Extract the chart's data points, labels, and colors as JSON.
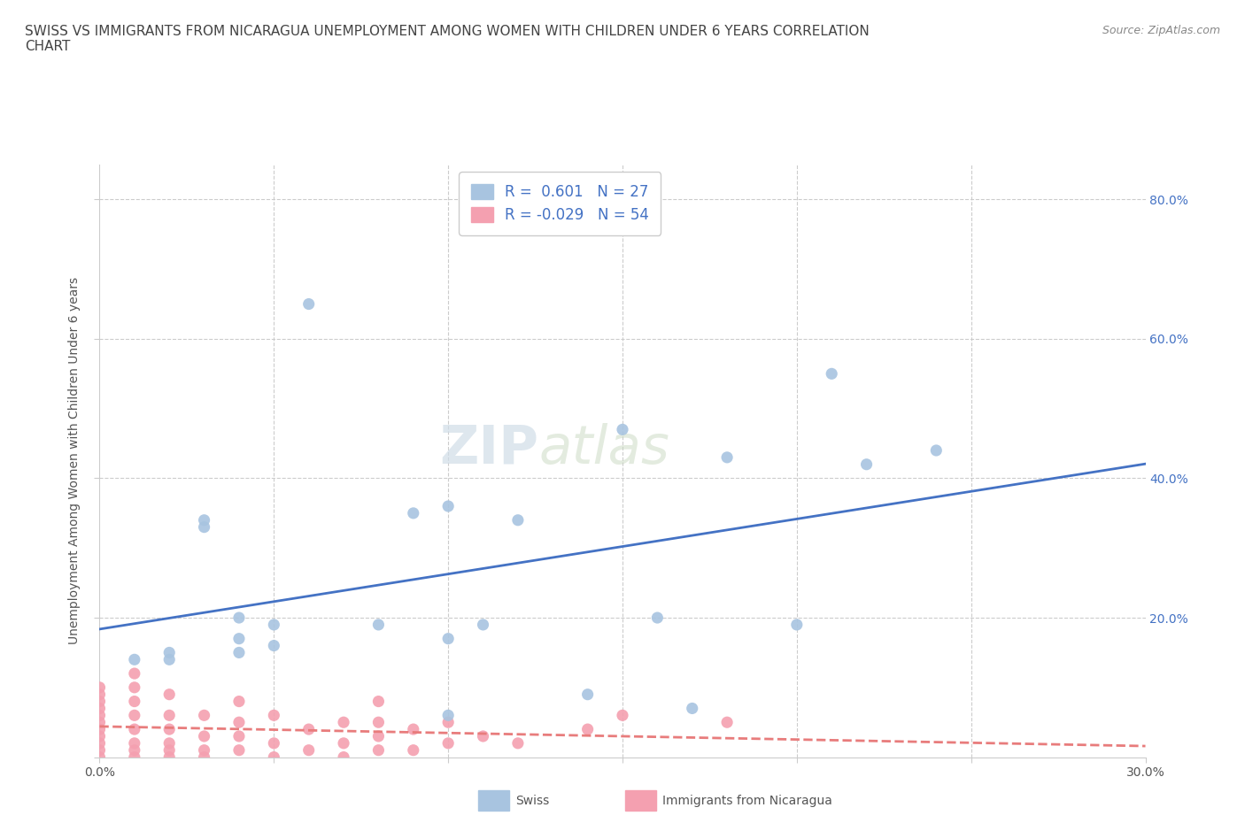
{
  "title": "SWISS VS IMMIGRANTS FROM NICARAGUA UNEMPLOYMENT AMONG WOMEN WITH CHILDREN UNDER 6 YEARS CORRELATION\nCHART",
  "source": "Source: ZipAtlas.com",
  "xlabel": "",
  "ylabel": "Unemployment Among Women with Children Under 6 years",
  "xlim": [
    0.0,
    0.3
  ],
  "ylim": [
    0.0,
    0.85
  ],
  "xticks": [
    0.0,
    0.05,
    0.1,
    0.15,
    0.2,
    0.25,
    0.3
  ],
  "yticks": [
    0.0,
    0.2,
    0.4,
    0.6,
    0.8
  ],
  "swiss_color": "#a8c4e0",
  "nicaragua_color": "#f4a0b0",
  "swiss_line_color": "#4472c4",
  "nicaragua_line_color": "#e87c7c",
  "swiss_R": 0.601,
  "swiss_N": 27,
  "nicaragua_R": -0.029,
  "nicaragua_N": 54,
  "watermark_text": "ZIP",
  "watermark_text2": "atlas",
  "swiss_x": [
    0.01,
    0.02,
    0.02,
    0.03,
    0.03,
    0.04,
    0.04,
    0.04,
    0.05,
    0.05,
    0.06,
    0.08,
    0.09,
    0.1,
    0.1,
    0.1,
    0.11,
    0.12,
    0.14,
    0.15,
    0.16,
    0.17,
    0.18,
    0.2,
    0.21,
    0.22,
    0.24
  ],
  "swiss_y": [
    0.14,
    0.14,
    0.15,
    0.33,
    0.34,
    0.15,
    0.17,
    0.2,
    0.16,
    0.19,
    0.65,
    0.19,
    0.35,
    0.06,
    0.17,
    0.36,
    0.19,
    0.34,
    0.09,
    0.47,
    0.2,
    0.07,
    0.43,
    0.19,
    0.55,
    0.42,
    0.44
  ],
  "nicaragua_x": [
    0.0,
    0.0,
    0.0,
    0.0,
    0.0,
    0.0,
    0.0,
    0.0,
    0.0,
    0.0,
    0.0,
    0.01,
    0.01,
    0.01,
    0.01,
    0.01,
    0.01,
    0.01,
    0.01,
    0.02,
    0.02,
    0.02,
    0.02,
    0.02,
    0.02,
    0.03,
    0.03,
    0.03,
    0.03,
    0.04,
    0.04,
    0.04,
    0.04,
    0.05,
    0.05,
    0.05,
    0.06,
    0.06,
    0.07,
    0.07,
    0.07,
    0.08,
    0.08,
    0.08,
    0.08,
    0.09,
    0.09,
    0.1,
    0.1,
    0.11,
    0.12,
    0.14,
    0.15,
    0.18
  ],
  "nicaragua_y": [
    0.0,
    0.01,
    0.02,
    0.03,
    0.04,
    0.05,
    0.06,
    0.07,
    0.08,
    0.09,
    0.1,
    0.0,
    0.01,
    0.02,
    0.04,
    0.06,
    0.08,
    0.1,
    0.12,
    0.0,
    0.01,
    0.02,
    0.04,
    0.06,
    0.09,
    0.0,
    0.01,
    0.03,
    0.06,
    0.01,
    0.03,
    0.05,
    0.08,
    0.0,
    0.02,
    0.06,
    0.01,
    0.04,
    0.0,
    0.02,
    0.05,
    0.01,
    0.03,
    0.05,
    0.08,
    0.01,
    0.04,
    0.02,
    0.05,
    0.03,
    0.02,
    0.04,
    0.06,
    0.05
  ],
  "background_color": "#ffffff",
  "grid_color": "#cccccc"
}
